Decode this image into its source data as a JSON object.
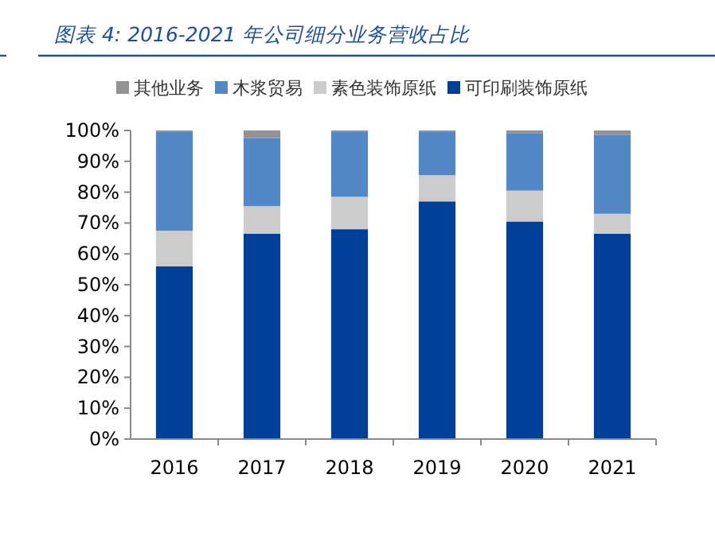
{
  "chart_data": {
    "type": "bar",
    "title": "图表 4:  2016-2021 年公司细分业务营收占比",
    "categories": [
      "2016",
      "2017",
      "2018",
      "2019",
      "2020",
      "2021"
    ],
    "stacked": true,
    "legend": "top",
    "series": [
      {
        "name": "可印刷装饰原纸",
        "color": "#003f98",
        "values": [
          56,
          66.5,
          68,
          77,
          70.5,
          66.5
        ]
      },
      {
        "name": "素色装饰原纸",
        "color": "#cccccc",
        "values": [
          11.5,
          9,
          10.5,
          8.5,
          10,
          6.5
        ]
      },
      {
        "name": "木浆贸易",
        "color": "#5387c6",
        "values": [
          32,
          22,
          21,
          14,
          18.5,
          25.5
        ]
      },
      {
        "name": "其他业务",
        "color": "#939393",
        "values": [
          0.5,
          2.5,
          0.5,
          0.5,
          1,
          1.5
        ]
      }
    ],
    "ylim": [
      0,
      100
    ],
    "yticks": [
      {
        "value": 0,
        "label": "0%"
      },
      {
        "value": 10,
        "label": "10%"
      },
      {
        "value": 20,
        "label": "20%"
      },
      {
        "value": 30,
        "label": "30%"
      },
      {
        "value": 40,
        "label": "40%"
      },
      {
        "value": 50,
        "label": "50%"
      },
      {
        "value": 60,
        "label": "60%"
      },
      {
        "value": 70,
        "label": "70%"
      },
      {
        "value": 80,
        "label": "80%"
      },
      {
        "value": 90,
        "label": "90%"
      },
      {
        "value": 100,
        "label": "100%"
      }
    ]
  }
}
